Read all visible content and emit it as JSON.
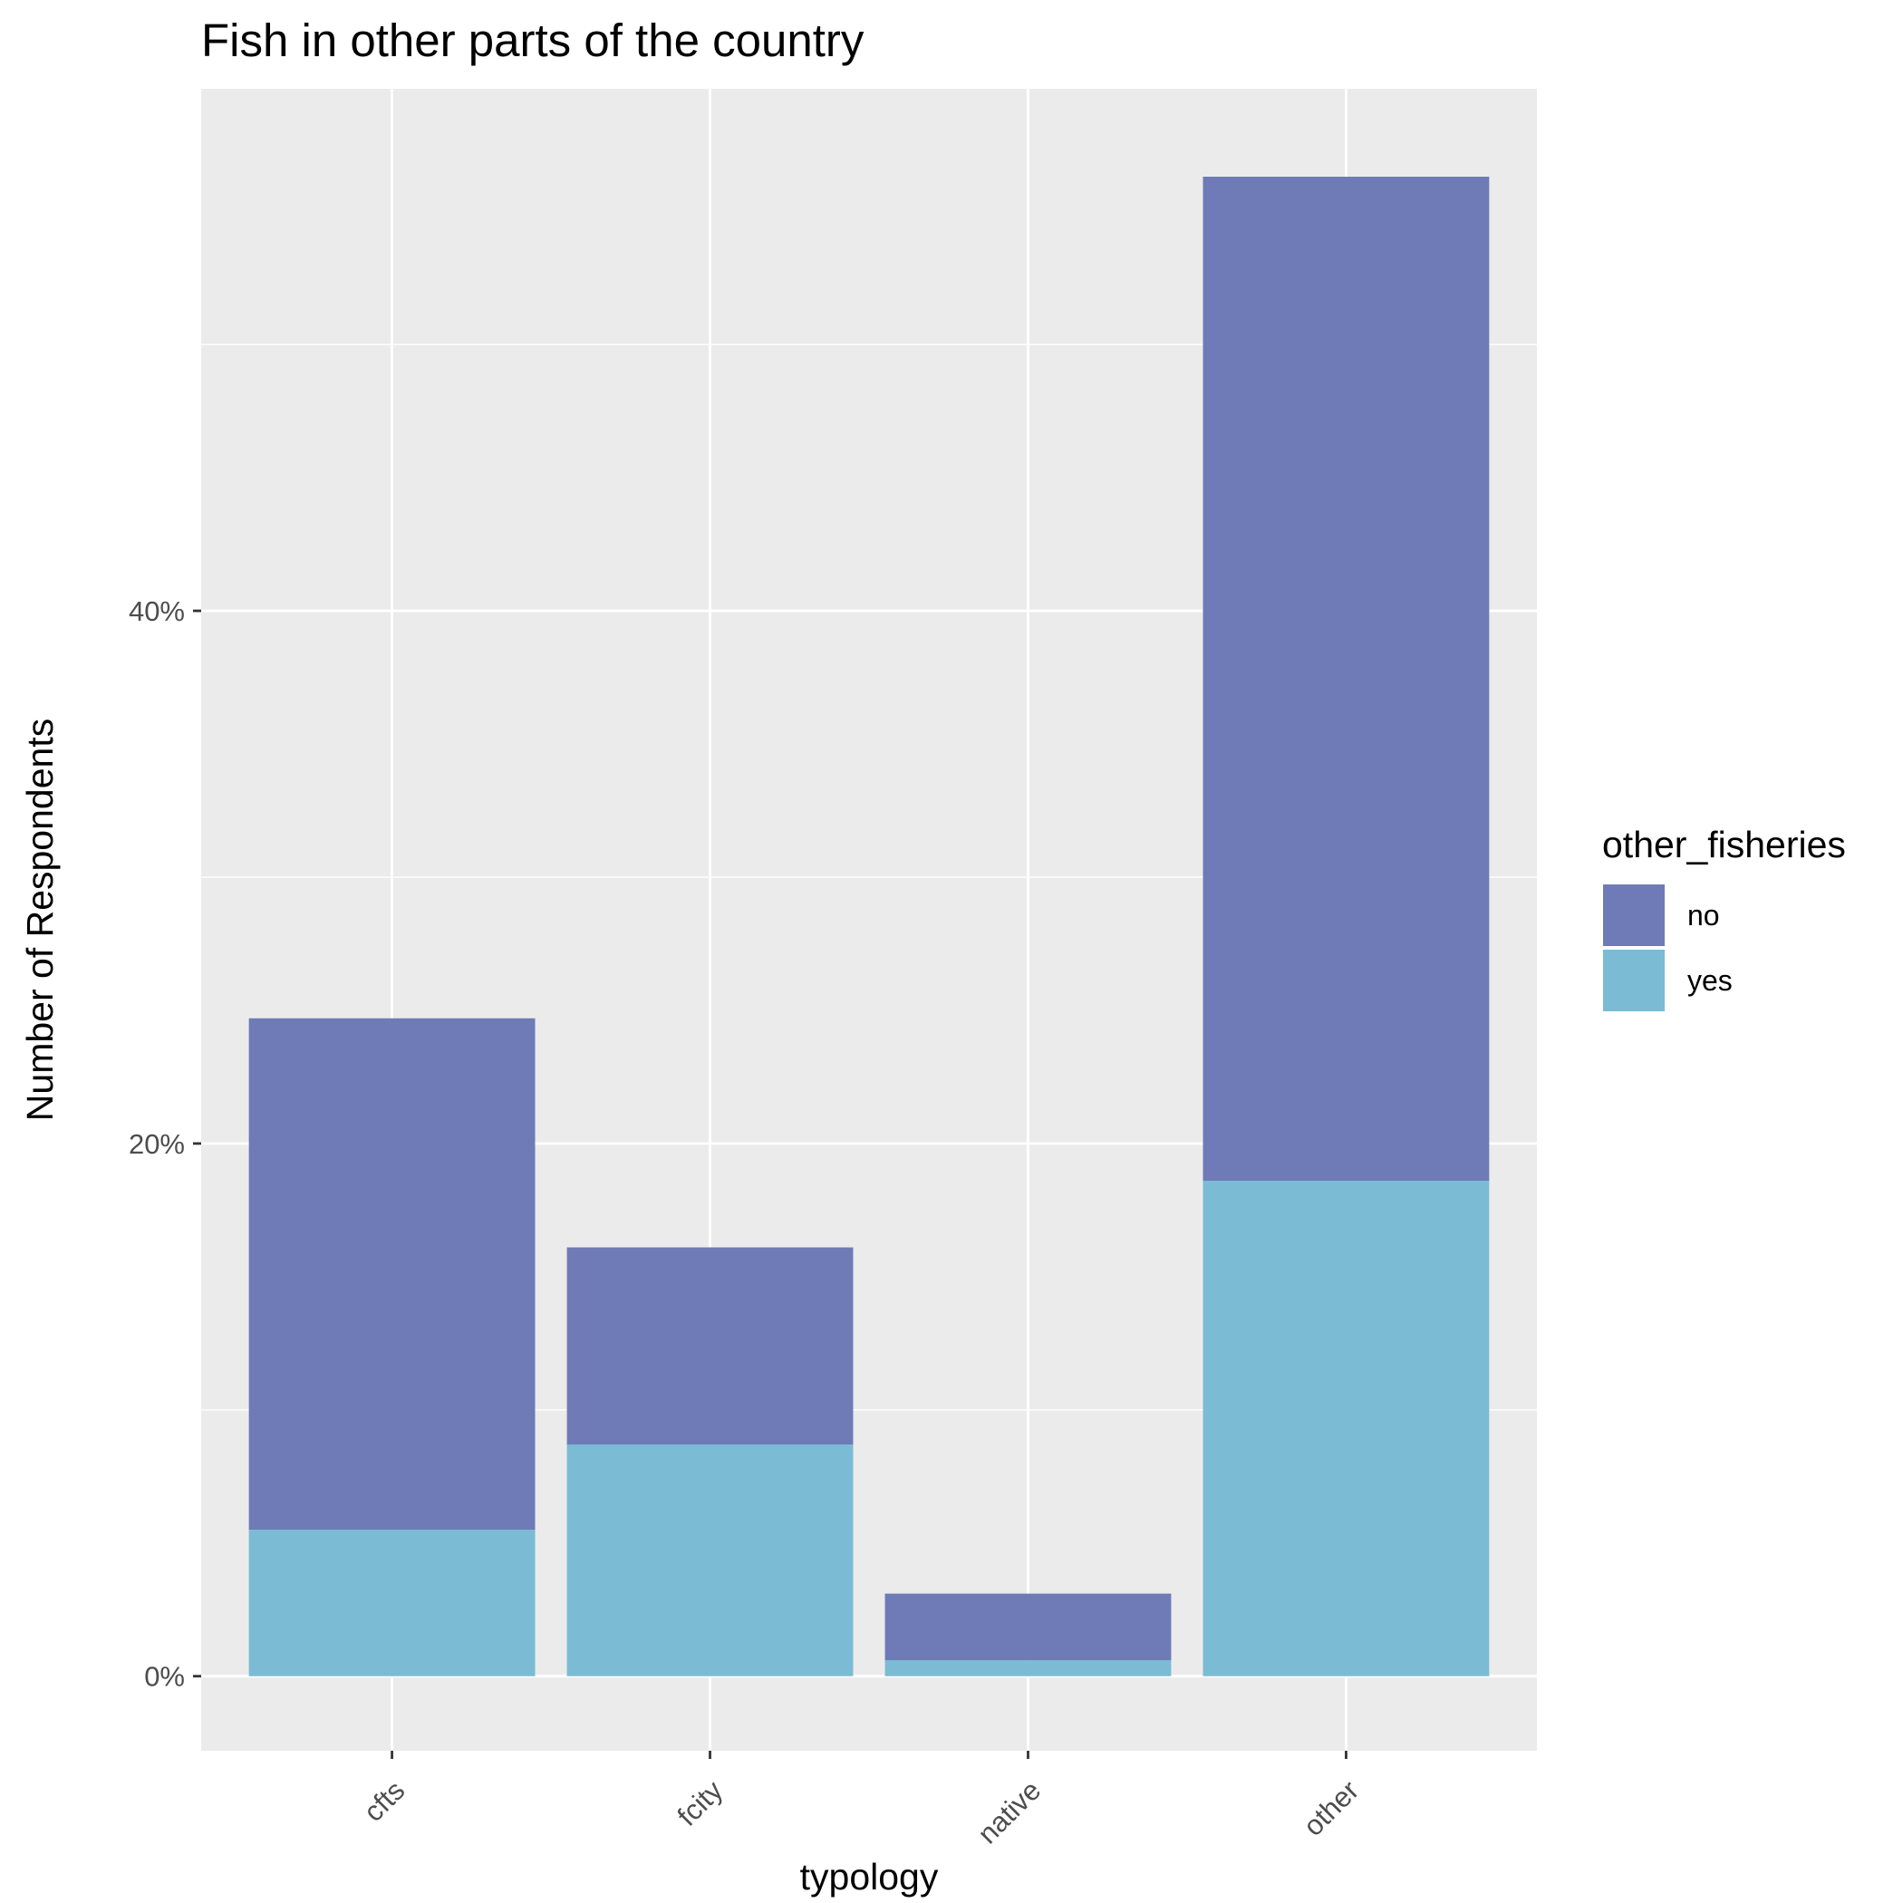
{
  "chart_data": {
    "type": "bar",
    "stacked": true,
    "title": "Fish in other parts of the country",
    "xlabel": "typology",
    "ylabel": "Number of Respondents",
    "categories": [
      "cfts",
      "fcity",
      "native",
      "other"
    ],
    "series": [
      {
        "name": "no",
        "values": [
          19.2,
          7.4,
          2.5,
          37.7
        ],
        "color": "#6e7bb7"
      },
      {
        "name": "yes",
        "values": [
          5.5,
          8.7,
          0.6,
          18.6
        ],
        "color": "#7bbbd4"
      }
    ],
    "ylim": [
      -2.8,
      59.6
    ],
    "y_ticks": [
      0,
      20,
      40
    ],
    "y_tick_labels": [
      "0%",
      "20%",
      "40%"
    ],
    "y_minor_ticks": [
      10,
      30,
      50
    ],
    "grid": true,
    "panel_background": "#ebebeb",
    "legend": {
      "title": "other_fisheries",
      "position": "right",
      "entries": [
        "no",
        "yes"
      ]
    }
  }
}
